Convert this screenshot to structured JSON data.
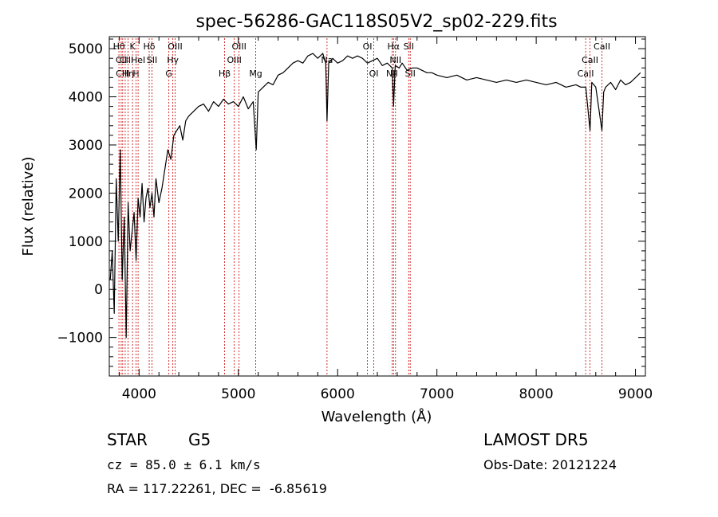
{
  "chart_data": {
    "type": "line",
    "title": "spec-56286-GAC118S05V2_sp02-229.fits",
    "xlabel": "Wavelength (Å)",
    "ylabel": "Flux (relative)",
    "xlim": [
      3700,
      9100
    ],
    "ylim": [
      -1800,
      5250
    ],
    "xticks": [
      4000,
      5000,
      6000,
      7000,
      8000,
      9000
    ],
    "yticks": [
      -1000,
      0,
      1000,
      2000,
      3000,
      4000,
      5000
    ],
    "grid": false,
    "line_color": "#000000",
    "marker_color": "#cc0000",
    "series": [
      {
        "x": [
          3710,
          3730,
          3750,
          3770,
          3790,
          3810,
          3830,
          3850,
          3870,
          3890,
          3910,
          3930,
          3950,
          3970,
          3990,
          4010,
          4030,
          4050,
          4070,
          4090,
          4110,
          4130,
          4150,
          4170,
          4200,
          4230,
          4260,
          4290,
          4320,
          4350,
          4380,
          4410,
          4440,
          4470,
          4500,
          4550,
          4600,
          4650,
          4700,
          4750,
          4800,
          4850,
          4900,
          4950,
          5000,
          5050,
          5100,
          5150,
          5180,
          5200,
          5250,
          5300,
          5350,
          5400,
          5450,
          5500,
          5550,
          5600,
          5650,
          5700,
          5750,
          5800,
          5850,
          5880,
          5893,
          5910,
          5950,
          6000,
          6050,
          6100,
          6150,
          6200,
          6250,
          6300,
          6350,
          6400,
          6450,
          6500,
          6550,
          6563,
          6580,
          6620,
          6650,
          6700,
          6750,
          6800,
          6850,
          6900,
          6950,
          7000,
          7100,
          7200,
          7300,
          7400,
          7500,
          7600,
          7700,
          7800,
          7900,
          8000,
          8100,
          8200,
          8300,
          8400,
          8450,
          8500,
          8542,
          8560,
          8600,
          8662,
          8680,
          8700,
          8750,
          8800,
          8850,
          8900,
          8950,
          9000,
          9050
        ],
        "y": [
          200,
          800,
          -500,
          2300,
          1000,
          2900,
          200,
          1500,
          -1000,
          1800,
          800,
          1200,
          1600,
          600,
          1900,
          1500,
          2200,
          1400,
          1900,
          2100,
          1700,
          2000,
          1500,
          2300,
          1800,
          2100,
          2500,
          2900,
          2700,
          3200,
          3300,
          3400,
          3100,
          3500,
          3600,
          3700,
          3800,
          3850,
          3700,
          3900,
          3800,
          3950,
          3850,
          3900,
          3800,
          4000,
          3750,
          3900,
          2900,
          4100,
          4200,
          4300,
          4250,
          4450,
          4500,
          4600,
          4700,
          4750,
          4700,
          4850,
          4900,
          4800,
          4900,
          4700,
          3500,
          4700,
          4800,
          4700,
          4750,
          4850,
          4800,
          4850,
          4800,
          4700,
          4750,
          4800,
          4650,
          4700,
          4600,
          3800,
          4650,
          4600,
          4700,
          4550,
          4600,
          4600,
          4550,
          4500,
          4500,
          4450,
          4400,
          4450,
          4350,
          4400,
          4350,
          4300,
          4350,
          4300,
          4350,
          4300,
          4250,
          4300,
          4200,
          4250,
          4200,
          4200,
          3300,
          4300,
          4200,
          3300,
          4100,
          4200,
          4300,
          4150,
          4350,
          4250,
          4300,
          4400,
          4500
        ]
      }
    ],
    "line_markers": [
      {
        "x": 3797,
        "label": "Hθ",
        "row": 1
      },
      {
        "x": 3820,
        "label": "CII",
        "row": 2
      },
      {
        "x": 3835,
        "label": "CIII",
        "row": 3
      },
      {
        "x": 3860,
        "label": "CII",
        "row": 2
      },
      {
        "x": 3889,
        "label": "Hη",
        "row": 3
      },
      {
        "x": 3934,
        "label": "K",
        "row": 1
      },
      {
        "x": 3969,
        "label": "H",
        "row": 3
      },
      {
        "x": 3990,
        "label": "HeI",
        "row": 2
      },
      {
        "x": 4102,
        "label": "Hδ",
        "row": 1
      },
      {
        "x": 4130,
        "label": "SII",
        "row": 2
      },
      {
        "x": 4300,
        "label": "G",
        "row": 3
      },
      {
        "x": 4340,
        "label": "Hγ",
        "row": 2
      },
      {
        "x": 4363,
        "label": "OIII",
        "row": 1
      },
      {
        "x": 4861,
        "label": "Hβ",
        "row": 3
      },
      {
        "x": 4959,
        "label": "OIII",
        "row": 2
      },
      {
        "x": 5007,
        "label": "OIII",
        "row": 1
      },
      {
        "x": 5175,
        "label": "Mg",
        "row": 3
      },
      {
        "x": 5893,
        "label": "Na",
        "row": 2
      },
      {
        "x": 6300,
        "label": "OI",
        "row": 1
      },
      {
        "x": 6364,
        "label": "OI",
        "row": 3
      },
      {
        "x": 6548,
        "label": "NII",
        "row": 3
      },
      {
        "x": 6563,
        "label": "Hα",
        "row": 1
      },
      {
        "x": 6583,
        "label": "NII",
        "row": 2
      },
      {
        "x": 6716,
        "label": "SII",
        "row": 1
      },
      {
        "x": 6731,
        "label": "SII",
        "row": 3
      },
      {
        "x": 8498,
        "label": "CaII",
        "row": 3
      },
      {
        "x": 8542,
        "label": "CaII",
        "row": 2
      },
      {
        "x": 8662,
        "label": "CaII",
        "row": 1
      }
    ]
  },
  "info": {
    "object_class": "STAR",
    "subclass": "G5",
    "survey": "LAMOST DR5",
    "redshift": "cz = 85.0 ± 6.1 km/s",
    "obs_date": "Obs-Date: 20121224",
    "coords": "RA = 117.22261, DEC =  -6.85619"
  }
}
